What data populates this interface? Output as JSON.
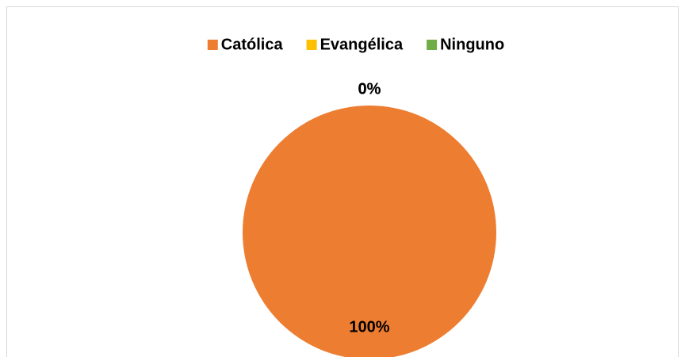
{
  "chart_data": {
    "type": "pie",
    "categories": [
      "Católica",
      "Evangélica",
      "Ninguno"
    ],
    "values": [
      100,
      0,
      0
    ],
    "value_labels": [
      "100%",
      "0%",
      "0%"
    ],
    "colors": [
      "#ed7d31",
      "#ffc000",
      "#70ad47"
    ],
    "legend": "top"
  }
}
